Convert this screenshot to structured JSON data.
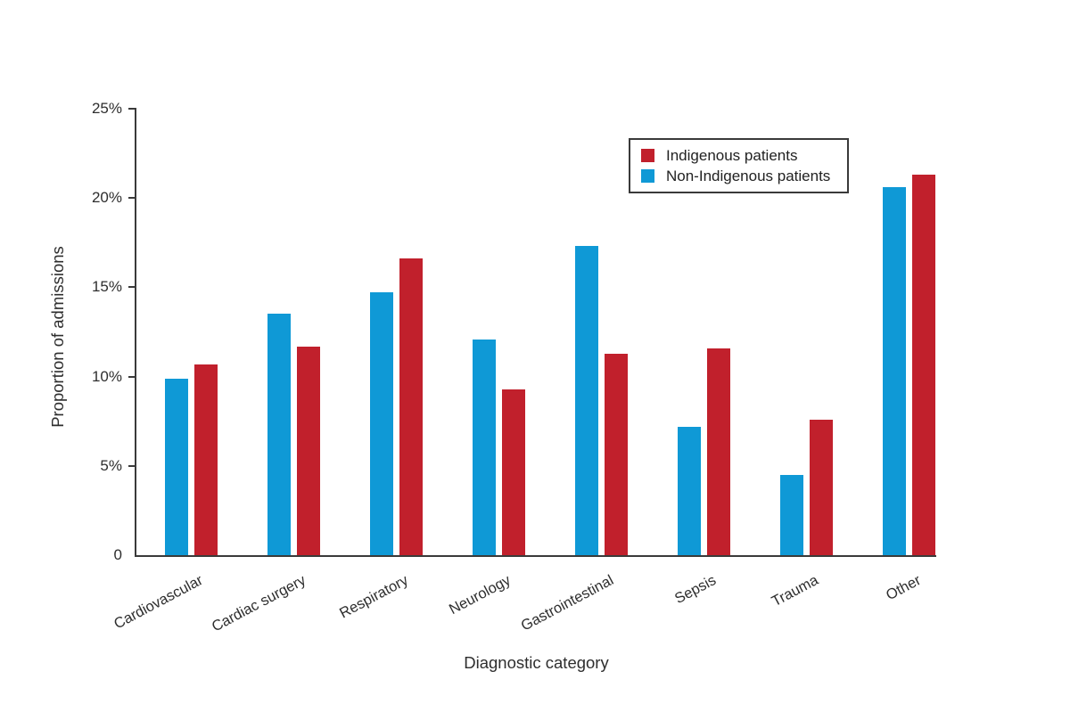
{
  "chart_data": {
    "type": "bar",
    "title": "",
    "xlabel": "Diagnostic category",
    "ylabel": "Proportion of admissions",
    "categories": [
      "Cardiovascular",
      "Cardiac surgery",
      "Respiratory",
      "Neurology",
      "Gastrointestinal",
      "Sepsis",
      "Trauma",
      "Other"
    ],
    "series": [
      {
        "name": "Indigenous patients",
        "color": "#c1202c",
        "values": [
          10.7,
          11.7,
          16.6,
          9.3,
          11.3,
          11.6,
          7.6,
          21.3
        ]
      },
      {
        "name": "Non-Indigenous patients",
        "color": "#0f99d6",
        "values": [
          9.9,
          13.5,
          14.7,
          12.1,
          17.3,
          7.2,
          4.5,
          20.6
        ]
      }
    ],
    "bar_order_left_to_right": [
      "Non-Indigenous patients",
      "Indigenous patients"
    ],
    "ylim": [
      0,
      25
    ],
    "yticks": [
      {
        "value": 0,
        "label": "0"
      },
      {
        "value": 5,
        "label": "5%"
      },
      {
        "value": 10,
        "label": "10%"
      },
      {
        "value": 15,
        "label": "15%"
      },
      {
        "value": 20,
        "label": "20%"
      },
      {
        "value": 25,
        "label": "25%"
      }
    ],
    "grid": false,
    "legend_position": "upper-right-inside"
  }
}
